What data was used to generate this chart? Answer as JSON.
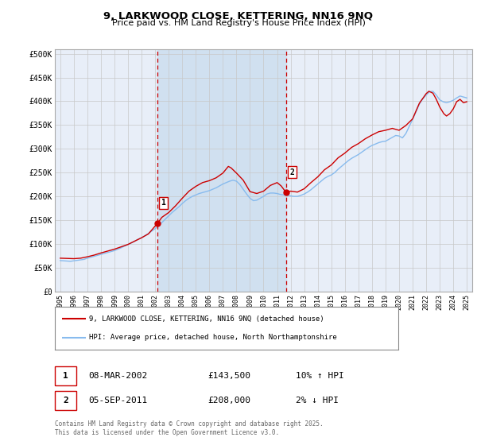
{
  "title": "9, LARKWOOD CLOSE, KETTERING, NN16 9NQ",
  "subtitle": "Price paid vs. HM Land Registry's House Price Index (HPI)",
  "background_color": "#ffffff",
  "plot_bg_color": "#e8eef8",
  "grid_color": "#c8c8c8",
  "hpi_line_color": "#88bbee",
  "price_line_color": "#cc0000",
  "highlight_bg_color": "#d0e0f0",
  "vline_color": "#cc0000",
  "marker1_date_x": 2002.18,
  "marker2_date_x": 2011.67,
  "marker1_y": 143500,
  "marker2_y": 208000,
  "legend_entry1": "9, LARKWOOD CLOSE, KETTERING, NN16 9NQ (detached house)",
  "legend_entry2": "HPI: Average price, detached house, North Northamptonshire",
  "table_row1": [
    "1",
    "08-MAR-2002",
    "£143,500",
    "10% ↑ HPI"
  ],
  "table_row2": [
    "2",
    "05-SEP-2011",
    "£208,000",
    "2% ↓ HPI"
  ],
  "footer": "Contains HM Land Registry data © Crown copyright and database right 2025.\nThis data is licensed under the Open Government Licence v3.0.",
  "ylim": [
    0,
    510000
  ],
  "xlim_start": 1994.6,
  "xlim_end": 2025.4,
  "yticks": [
    0,
    50000,
    100000,
    150000,
    200000,
    250000,
    300000,
    350000,
    400000,
    450000,
    500000
  ],
  "ytick_labels": [
    "£0",
    "£50K",
    "£100K",
    "£150K",
    "£200K",
    "£250K",
    "£300K",
    "£350K",
    "£400K",
    "£450K",
    "£500K"
  ],
  "xticks": [
    1995,
    1996,
    1997,
    1998,
    1999,
    2000,
    2001,
    2002,
    2003,
    2004,
    2005,
    2006,
    2007,
    2008,
    2009,
    2010,
    2011,
    2012,
    2013,
    2014,
    2015,
    2016,
    2017,
    2018,
    2019,
    2020,
    2021,
    2022,
    2023,
    2024,
    2025
  ],
  "hpi_data": [
    [
      1995.0,
      65000
    ],
    [
      1995.25,
      64500
    ],
    [
      1995.5,
      64000
    ],
    [
      1995.75,
      63500
    ],
    [
      1996.0,
      64500
    ],
    [
      1996.25,
      65500
    ],
    [
      1996.5,
      66500
    ],
    [
      1996.75,
      67500
    ],
    [
      1997.0,
      70000
    ],
    [
      1997.25,
      72000
    ],
    [
      1997.5,
      74000
    ],
    [
      1997.75,
      76000
    ],
    [
      1998.0,
      78000
    ],
    [
      1998.25,
      80000
    ],
    [
      1998.5,
      82000
    ],
    [
      1998.75,
      84000
    ],
    [
      1999.0,
      86000
    ],
    [
      1999.25,
      89000
    ],
    [
      1999.5,
      92000
    ],
    [
      1999.75,
      95500
    ],
    [
      2000.0,
      99000
    ],
    [
      2000.25,
      102000
    ],
    [
      2000.5,
      106000
    ],
    [
      2000.75,
      110000
    ],
    [
      2001.0,
      113000
    ],
    [
      2001.25,
      117500
    ],
    [
      2001.5,
      122000
    ],
    [
      2001.75,
      127000
    ],
    [
      2002.0,
      132000
    ],
    [
      2002.25,
      138000
    ],
    [
      2002.5,
      145000
    ],
    [
      2002.75,
      152000
    ],
    [
      2003.0,
      159000
    ],
    [
      2003.25,
      166000
    ],
    [
      2003.5,
      172000
    ],
    [
      2003.75,
      178000
    ],
    [
      2004.0,
      185000
    ],
    [
      2004.25,
      191000
    ],
    [
      2004.5,
      196000
    ],
    [
      2004.75,
      200000
    ],
    [
      2005.0,
      203000
    ],
    [
      2005.25,
      206000
    ],
    [
      2005.5,
      208000
    ],
    [
      2005.75,
      210000
    ],
    [
      2006.0,
      212000
    ],
    [
      2006.25,
      215000
    ],
    [
      2006.5,
      218000
    ],
    [
      2006.75,
      222000
    ],
    [
      2007.0,
      226000
    ],
    [
      2007.25,
      229000
    ],
    [
      2007.5,
      232000
    ],
    [
      2007.75,
      234000
    ],
    [
      2008.0,
      232000
    ],
    [
      2008.25,
      225000
    ],
    [
      2008.5,
      215000
    ],
    [
      2008.75,
      205000
    ],
    [
      2009.0,
      196000
    ],
    [
      2009.25,
      191000
    ],
    [
      2009.5,
      192000
    ],
    [
      2009.75,
      196000
    ],
    [
      2010.0,
      200000
    ],
    [
      2010.25,
      205000
    ],
    [
      2010.5,
      207000
    ],
    [
      2010.75,
      207000
    ],
    [
      2011.0,
      206000
    ],
    [
      2011.25,
      204000
    ],
    [
      2011.5,
      203000
    ],
    [
      2011.75,
      202000
    ],
    [
      2012.0,
      201000
    ],
    [
      2012.25,
      200000
    ],
    [
      2012.5,
      200000
    ],
    [
      2012.75,
      202000
    ],
    [
      2013.0,
      205000
    ],
    [
      2013.25,
      209000
    ],
    [
      2013.5,
      214000
    ],
    [
      2013.75,
      220000
    ],
    [
      2014.0,
      226000
    ],
    [
      2014.25,
      232000
    ],
    [
      2014.5,
      238000
    ],
    [
      2014.75,
      242000
    ],
    [
      2015.0,
      245000
    ],
    [
      2015.25,
      250000
    ],
    [
      2015.5,
      257000
    ],
    [
      2015.75,
      263000
    ],
    [
      2016.0,
      269000
    ],
    [
      2016.25,
      275000
    ],
    [
      2016.5,
      280000
    ],
    [
      2016.75,
      284000
    ],
    [
      2017.0,
      288000
    ],
    [
      2017.25,
      293000
    ],
    [
      2017.5,
      298000
    ],
    [
      2017.75,
      303000
    ],
    [
      2018.0,
      307000
    ],
    [
      2018.25,
      310000
    ],
    [
      2018.5,
      313000
    ],
    [
      2018.75,
      315000
    ],
    [
      2019.0,
      316000
    ],
    [
      2019.25,
      320000
    ],
    [
      2019.5,
      324000
    ],
    [
      2019.75,
      328000
    ],
    [
      2020.0,
      327000
    ],
    [
      2020.25,
      323000
    ],
    [
      2020.5,
      332000
    ],
    [
      2020.75,
      347000
    ],
    [
      2021.0,
      362000
    ],
    [
      2021.25,
      378000
    ],
    [
      2021.5,
      394000
    ],
    [
      2021.75,
      405000
    ],
    [
      2022.0,
      413000
    ],
    [
      2022.25,
      420000
    ],
    [
      2022.5,
      421000
    ],
    [
      2022.75,
      413000
    ],
    [
      2023.0,
      403000
    ],
    [
      2023.25,
      399000
    ],
    [
      2023.5,
      397000
    ],
    [
      2023.75,
      399000
    ],
    [
      2024.0,
      402000
    ],
    [
      2024.25,
      407000
    ],
    [
      2024.5,
      411000
    ],
    [
      2024.75,
      409000
    ],
    [
      2025.0,
      407000
    ]
  ],
  "price_data": [
    [
      1995.0,
      70000
    ],
    [
      1995.5,
      69500
    ],
    [
      1996.0,
      69000
    ],
    [
      1996.5,
      70000
    ],
    [
      1997.0,
      73000
    ],
    [
      1997.5,
      76500
    ],
    [
      1998.0,
      81000
    ],
    [
      1998.5,
      85000
    ],
    [
      1999.0,
      89000
    ],
    [
      1999.5,
      94000
    ],
    [
      2000.0,
      99000
    ],
    [
      2000.5,
      106000
    ],
    [
      2001.0,
      113000
    ],
    [
      2001.5,
      121000
    ],
    [
      2002.18,
      143500
    ],
    [
      2002.5,
      156000
    ],
    [
      2003.0,
      166000
    ],
    [
      2003.5,
      180000
    ],
    [
      2004.0,
      196000
    ],
    [
      2004.5,
      211000
    ],
    [
      2005.0,
      221000
    ],
    [
      2005.5,
      229000
    ],
    [
      2006.0,
      233000
    ],
    [
      2006.5,
      239000
    ],
    [
      2007.0,
      249000
    ],
    [
      2007.2,
      256000
    ],
    [
      2007.4,
      263000
    ],
    [
      2007.6,
      260000
    ],
    [
      2008.0,
      249000
    ],
    [
      2008.5,
      234000
    ],
    [
      2009.0,
      210000
    ],
    [
      2009.5,
      206000
    ],
    [
      2010.0,
      211000
    ],
    [
      2010.5,
      223000
    ],
    [
      2011.0,
      229000
    ],
    [
      2011.3,
      222000
    ],
    [
      2011.67,
      208000
    ],
    [
      2012.0,
      211000
    ],
    [
      2012.5,
      209000
    ],
    [
      2013.0,
      216000
    ],
    [
      2013.5,
      229000
    ],
    [
      2014.0,
      241000
    ],
    [
      2014.5,
      256000
    ],
    [
      2015.0,
      266000
    ],
    [
      2015.5,
      281000
    ],
    [
      2016.0,
      291000
    ],
    [
      2016.5,
      303000
    ],
    [
      2017.0,
      311000
    ],
    [
      2017.5,
      321000
    ],
    [
      2018.0,
      329000
    ],
    [
      2018.5,
      336000
    ],
    [
      2019.0,
      339000
    ],
    [
      2019.5,
      343000
    ],
    [
      2020.0,
      339000
    ],
    [
      2020.5,
      349000
    ],
    [
      2021.0,
      363000
    ],
    [
      2021.5,
      396000
    ],
    [
      2022.0,
      416000
    ],
    [
      2022.2,
      421000
    ],
    [
      2022.5,
      417000
    ],
    [
      2022.75,
      404000
    ],
    [
      2023.0,
      388000
    ],
    [
      2023.3,
      374000
    ],
    [
      2023.5,
      369000
    ],
    [
      2023.75,
      374000
    ],
    [
      2024.0,
      384000
    ],
    [
      2024.25,
      399000
    ],
    [
      2024.5,
      404000
    ],
    [
      2024.75,
      397000
    ],
    [
      2025.0,
      399000
    ]
  ]
}
